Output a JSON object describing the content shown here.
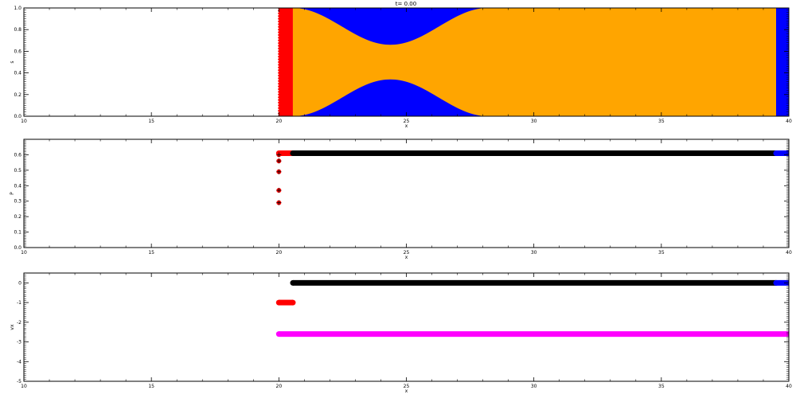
{
  "figure_title": "t= 0.00",
  "chart_data": [
    {
      "type": "area",
      "xlabel": "x",
      "ylabel": "s",
      "xlim": [
        10,
        40
      ],
      "ylim": [
        0,
        1
      ],
      "xticks": [
        10,
        15,
        20,
        25,
        30,
        35,
        40
      ],
      "xtick_labels": [
        "10",
        "15",
        "20",
        "25",
        "30",
        "35",
        "40"
      ],
      "yticks": [
        0,
        0.2,
        0.4,
        0.6,
        0.8,
        1.0
      ],
      "ytick_labels": [
        "0.0",
        "0.2",
        "0.4",
        "0.6",
        "0.8",
        "1.0"
      ],
      "colors": {
        "red": "#ff0000",
        "orange": "#ffa500",
        "blue": "#0000ff"
      },
      "regions": [
        {
          "name": "red",
          "x_start": 20.0,
          "x_end": 20.55,
          "y_low": 0,
          "y_high": 1
        },
        {
          "name": "orange",
          "x_start": 20.55,
          "x_end": 39.5,
          "y_low": 0,
          "y_high": 1
        },
        {
          "name": "blue",
          "x_start": 39.5,
          "x_end": 40.0,
          "y_low": 0,
          "y_high": 1
        }
      ],
      "blue_lobes": {
        "x_start": 20.55,
        "x_end": 28.2,
        "x_center": 24.4,
        "bottom_peak": 0.34,
        "top_trough": 0.66
      }
    },
    {
      "type": "scatter",
      "xlabel": "x",
      "ylabel": "P",
      "xlim": [
        10,
        40
      ],
      "ylim": [
        0,
        0.7
      ],
      "xticks": [
        10,
        15,
        20,
        25,
        30,
        35,
        40
      ],
      "xtick_labels": [
        "10",
        "15",
        "20",
        "25",
        "30",
        "35",
        "40"
      ],
      "yticks": [
        0,
        0.1,
        0.2,
        0.3,
        0.4,
        0.5,
        0.6
      ],
      "ytick_labels": [
        "0.0",
        "0.1",
        "0.2",
        "0.3",
        "0.4",
        "0.5",
        "0.6"
      ],
      "colors": {
        "red": "#ff0000",
        "black": "#000000",
        "blue": "#0000ff"
      },
      "series": [
        {
          "color": "red",
          "x": [
            20.0,
            20.0,
            20.0,
            20.0,
            20.0
          ],
          "y": [
            0.6,
            0.56,
            0.49,
            0.37,
            0.29
          ]
        },
        {
          "color": "red",
          "x_range": [
            20.0,
            20.55
          ],
          "y": 0.61
        },
        {
          "color": "black",
          "x_range": [
            20.55,
            39.5
          ],
          "y": 0.61
        },
        {
          "color": "blue",
          "x_range": [
            39.5,
            40.0
          ],
          "y": 0.61
        }
      ]
    },
    {
      "type": "scatter",
      "xlabel": "x",
      "ylabel": "vx",
      "xlim": [
        10,
        40
      ],
      "ylim": [
        -5,
        0.5
      ],
      "xticks": [
        10,
        15,
        20,
        25,
        30,
        35,
        40
      ],
      "xtick_labels": [
        "10",
        "15",
        "20",
        "25",
        "30",
        "35",
        "40"
      ],
      "yticks": [
        0,
        -1,
        -2,
        -3,
        -4,
        -5
      ],
      "ytick_labels": [
        "0",
        "-1",
        "-2",
        "-3",
        "-4",
        "-5"
      ],
      "colors": {
        "red": "#ff0000",
        "black": "#000000",
        "blue": "#0000ff",
        "magenta": "#ff00ff"
      },
      "series": [
        {
          "color": "black",
          "x_range": [
            20.55,
            39.5
          ],
          "y": 0.0
        },
        {
          "color": "blue",
          "x_range": [
            39.5,
            40.0
          ],
          "y": 0.0
        },
        {
          "color": "red",
          "x_range": [
            20.0,
            20.55
          ],
          "y": -1.0
        },
        {
          "color": "magenta",
          "x_range": [
            20.0,
            40.0
          ],
          "y": -2.6
        }
      ]
    }
  ]
}
